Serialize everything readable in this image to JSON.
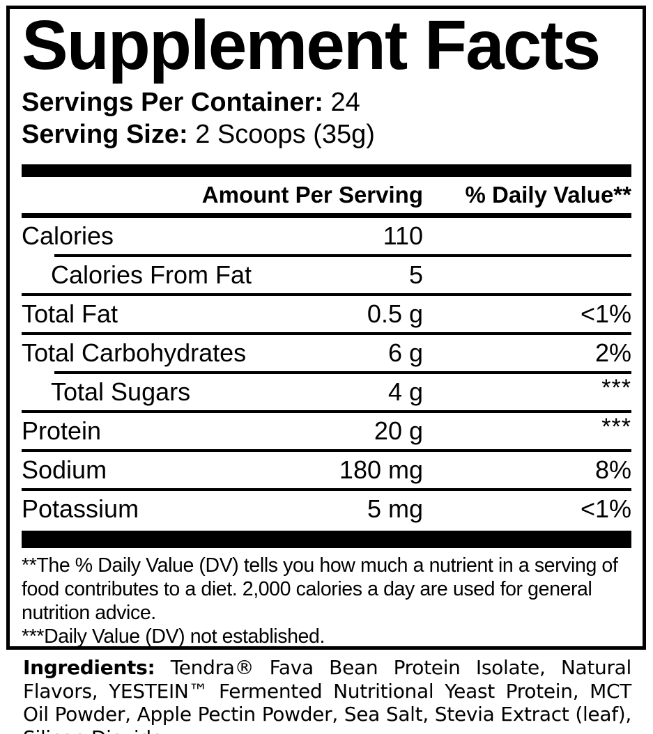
{
  "colors": {
    "text": "#000000",
    "background": "#ffffff",
    "rule": "#000000"
  },
  "label": {
    "title": "Supplement Facts",
    "servings_per_container": {
      "label": "Servings Per Container:",
      "value": "24"
    },
    "serving_size": {
      "label": "Serving Size:",
      "value": "2 Scoops (35g)"
    },
    "columns": {
      "amount_header": "Amount Per Serving",
      "daily_value_header": "% Daily Value**"
    },
    "rows": [
      {
        "name": "Calories",
        "amount": "110",
        "dv": "",
        "indent": false,
        "divider_above": "none"
      },
      {
        "name": "Calories From Fat",
        "amount": "5",
        "dv": "",
        "indent": true,
        "divider_above": "indent"
      },
      {
        "name": "Total Fat",
        "amount": "0.5 g",
        "dv": "<1%",
        "indent": false,
        "divider_above": "full"
      },
      {
        "name": "Total Carbohydrates",
        "amount": "6 g",
        "dv": "2%",
        "indent": false,
        "divider_above": "full"
      },
      {
        "name": "Total Sugars",
        "amount": "4 g",
        "dv": "***",
        "indent": true,
        "divider_above": "indent"
      },
      {
        "name": "Protein",
        "amount": "20 g",
        "dv": "***",
        "indent": false,
        "divider_above": "full"
      },
      {
        "name": "Sodium",
        "amount": "180 mg",
        "dv": "8%",
        "indent": false,
        "divider_above": "full"
      },
      {
        "name": "Potassium",
        "amount": "5 mg",
        "dv": "<1%",
        "indent": false,
        "divider_above": "full"
      }
    ],
    "footnotes": {
      "daily_value_note": "**The % Daily Value (DV) tells you how much a nutrient in a serving of food contributes to a diet. 2,000 calories a day are used for general nutrition advice.",
      "not_established_note": "***Daily Value (DV) not established."
    }
  },
  "ingredients": {
    "label": "Ingredients:",
    "text": "Tendra® Fava Bean Protein Isolate, Natural Flavors, YESTEIN™ Fermented Nutritional Yeast Protein, MCT Oil Powder, Apple Pectin Powder, Sea Salt, Stevia Extract (leaf), Silicon Dioxide."
  }
}
